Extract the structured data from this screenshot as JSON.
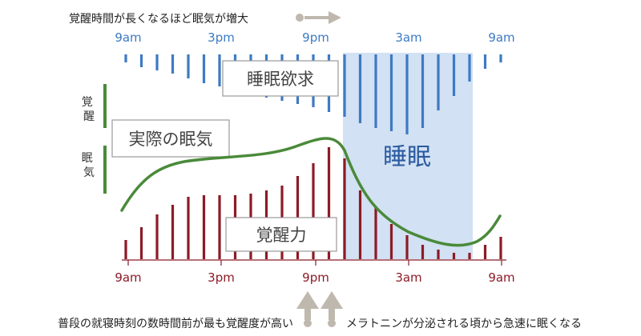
{
  "top_caption": "覚醒時間が長くなるほど眠気が増大",
  "time_ticks": [
    "9am",
    "3pm",
    "9pm",
    "3am",
    "9am"
  ],
  "label_sleep_pressure": "睡眠欲求",
  "label_actual_sleepiness": "実際の眠気",
  "label_alertness": "覚醒力",
  "label_sleep": "睡眠",
  "axis_awake": "覚醒",
  "axis_sleepy": "眠気",
  "bottom_caption_left": "普段の就寝時刻の数時間前が最も覚醒度が高い",
  "bottom_caption_right": "メラトニンが分泌される頃から急速に眠くなる",
  "colors": {
    "sleep_pressure": "#3d7ac4",
    "alertness": "#8c1b27",
    "actual_sleepiness": "#4a8a3a",
    "sleep_band": "#d2e1f3",
    "arrow": "#bfb8ae"
  }
}
